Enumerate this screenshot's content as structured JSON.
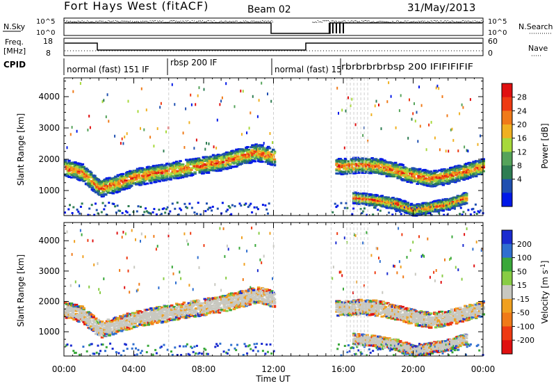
{
  "header": {
    "title": "Fort Hays West (fitACF)",
    "beam": "Beam 02",
    "date": "31/May/2013"
  },
  "top_panels": {
    "nsky_label": "N.Sky",
    "nsky_ticks": [
      "10^5",
      "10^0"
    ],
    "nsearch_label": "N.Search",
    "freq_label_line1": "Freq.",
    "freq_label_line2": "[MHz]",
    "freq_ticks": [
      "18",
      "8"
    ],
    "nave_label": "Nave",
    "nave_ticks": [
      "60",
      "0"
    ],
    "cpid_label": "CPID",
    "cpid_segments": [
      {
        "label": "normal (fast) 151 IF",
        "start_hour": 0,
        "end_hour": 6
      },
      {
        "label": "rbsp 200 IF",
        "start_hour": 6,
        "end_hour": 12
      },
      {
        "label": "normal (fast) 15",
        "start_hour": 12,
        "end_hour": 16.3
      },
      {
        "label": "rbrbrbrbrbsp 200 IFIFIFIFIF",
        "start_hour": 16.3,
        "end_hour": 24
      }
    ]
  },
  "chart_data": [
    {
      "type": "heatmap",
      "title": "Power",
      "xlabel": "Time UT",
      "ylabel": "Slant Range [km]",
      "xlim": [
        0,
        24
      ],
      "ylim": [
        200,
        4600
      ],
      "y_ticks": [
        1000,
        2000,
        3000,
        4000
      ],
      "colorbar_label": "Power [dB]",
      "colorbar_ticks": [
        "4",
        "8",
        "12",
        "16",
        "20",
        "24",
        "28"
      ],
      "colorbar_colors": [
        "#0018e8",
        "#1f4fb0",
        "#2e7d52",
        "#55a35a",
        "#a7d93b",
        "#f0b020",
        "#f07a18",
        "#ee3a12",
        "#e01010"
      ],
      "scatter_bands": [
        {
          "name": "main",
          "hours": [
            0,
            1,
            2,
            3,
            4,
            5,
            6,
            7,
            8,
            9,
            10,
            11,
            12
          ],
          "center_km": [
            1750,
            1600,
            1100,
            1250,
            1450,
            1550,
            1650,
            1750,
            1850,
            1950,
            2100,
            2250,
            2100
          ],
          "width_km": 450
        },
        {
          "name": "main-late",
          "hours": [
            15.5,
            16,
            17,
            18,
            19,
            20,
            21,
            22,
            23,
            24
          ],
          "center_km": [
            1800,
            1800,
            1850,
            1800,
            1650,
            1500,
            1400,
            1500,
            1650,
            1800
          ],
          "width_km": 420
        },
        {
          "name": "near",
          "hours": [
            16.5,
            18,
            19,
            20,
            21,
            22,
            23
          ],
          "center_km": [
            800,
            700,
            600,
            400,
            500,
            600,
            800
          ],
          "width_km": 300
        }
      ]
    },
    {
      "type": "heatmap",
      "title": "Velocity",
      "xlabel": "Time UT",
      "ylabel": "Slant Range [km]",
      "xlim": [
        0,
        24
      ],
      "ylim": [
        200,
        4600
      ],
      "x_ticks": [
        "00:00",
        "04:00",
        "08:00",
        "12:00",
        "16:00",
        "20:00",
        "00:00"
      ],
      "y_ticks": [
        1000,
        2000,
        3000,
        4000
      ],
      "colorbar_label": "Velocity [m s^-1]",
      "colorbar_ticks": [
        "200",
        "100",
        "50",
        "15",
        "-15",
        "-50",
        "-100",
        "-200"
      ],
      "colorbar_colors": [
        "#1a2bd0",
        "#2f6fd0",
        "#3aa83a",
        "#88cc44",
        "#c8c8c0",
        "#f0a020",
        "#f07a18",
        "#ee3a12",
        "#e01010"
      ]
    }
  ],
  "x_axis": {
    "ticks": [
      "00:00",
      "04:00",
      "08:00",
      "12:00",
      "16:00",
      "20:00",
      "00:00"
    ],
    "label": "Time UT"
  }
}
